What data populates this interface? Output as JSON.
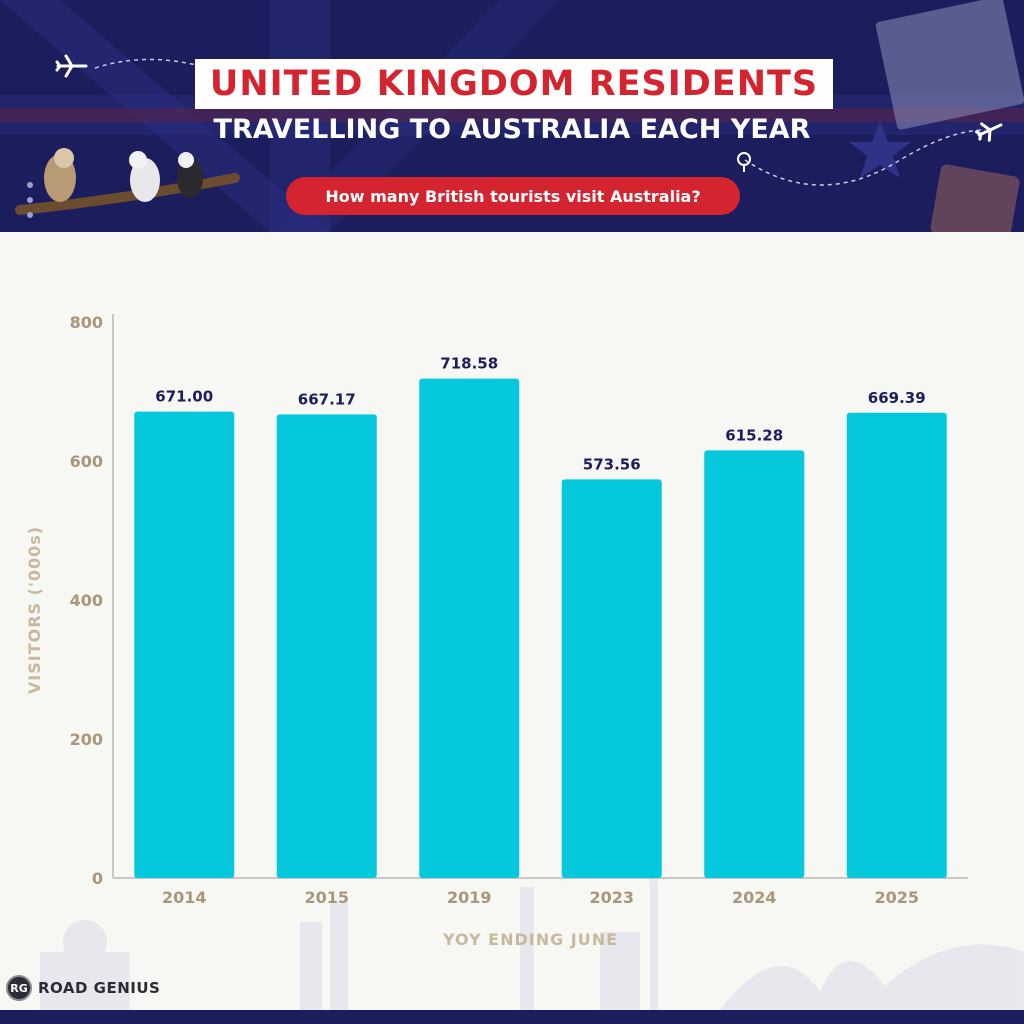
{
  "header": {
    "title": "UNITED KINGDOM RESIDENTS",
    "subtitle": "TRAVELLING TO AUSTRALIA EACH YEAR",
    "question": "How many British tourists visit Australia?"
  },
  "brand": {
    "logo": "RG",
    "name": "ROAD GENIUS"
  },
  "colors": {
    "navy": "#1c1d5c",
    "red": "#d3242f",
    "bar": "#06c8dc",
    "axis_text": "#a8977a",
    "label": "#1c1d5c"
  },
  "chart_data": {
    "type": "bar",
    "categories": [
      "2014",
      "2015",
      "2019",
      "2023",
      "2024",
      "2025"
    ],
    "values": [
      671.0,
      667.17,
      718.58,
      573.56,
      615.28,
      669.39
    ],
    "value_labels": [
      "671.00",
      "667.17",
      "718.58",
      "573.56",
      "615.28",
      "669.39"
    ],
    "xlabel": "YOY ENDING JUNE",
    "ylabel": "VISITORS ('000s)",
    "ylim": [
      0,
      800
    ],
    "yticks": [
      0,
      200,
      400,
      600,
      800
    ],
    "grid": false
  }
}
